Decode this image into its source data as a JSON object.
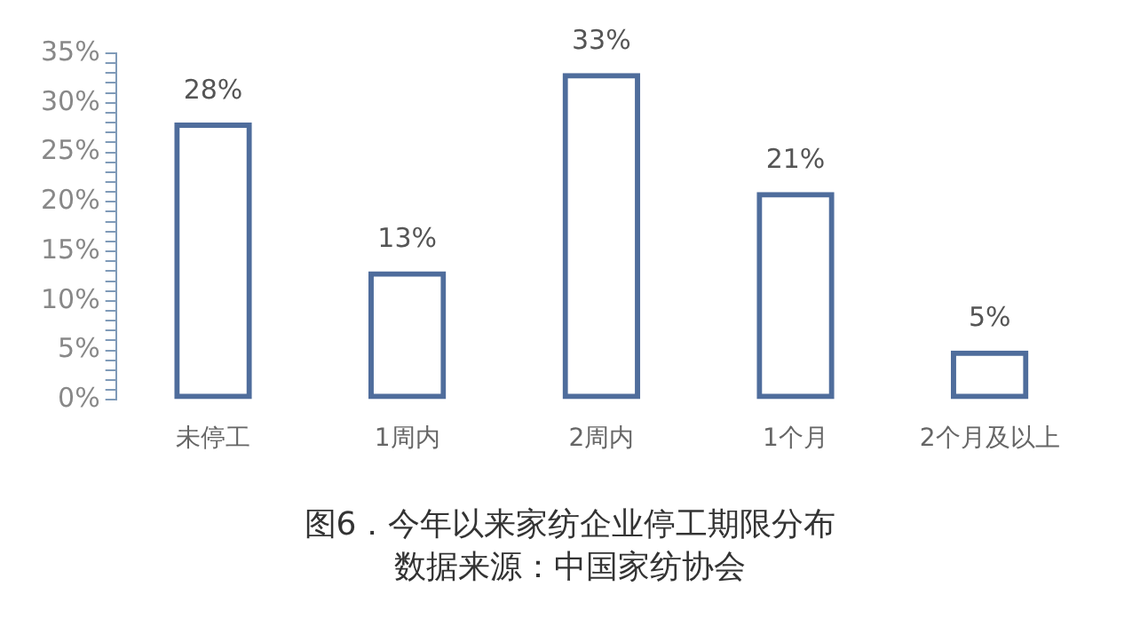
{
  "chart_data": {
    "type": "bar",
    "title": "图6．今年以来家纺企业停工期限分布",
    "annotations": [
      "数据来源：中国家纺协会"
    ],
    "categories": [
      "未停工",
      "1周内",
      "2周内",
      "1个月",
      "2个月及以上"
    ],
    "values": [
      28,
      13,
      33,
      21,
      5
    ],
    "value_labels": [
      "28%",
      "13%",
      "33%",
      "21%",
      "5%"
    ],
    "color": "#4f6d9c",
    "ylim": [
      0,
      35
    ],
    "yticks": [
      {
        "value": 0,
        "label": "0%"
      },
      {
        "value": 1,
        "label": null
      },
      {
        "value": 2,
        "label": null
      },
      {
        "value": 3,
        "label": null
      },
      {
        "value": 4,
        "label": null
      },
      {
        "value": 5,
        "label": "5%"
      },
      {
        "value": 6,
        "label": null
      },
      {
        "value": 7,
        "label": null
      },
      {
        "value": 8,
        "label": null
      },
      {
        "value": 9,
        "label": null
      },
      {
        "value": 10,
        "label": "10%"
      },
      {
        "value": 11,
        "label": null
      },
      {
        "value": 12,
        "label": null
      },
      {
        "value": 13,
        "label": null
      },
      {
        "value": 14,
        "label": null
      },
      {
        "value": 15,
        "label": "15%"
      },
      {
        "value": 16,
        "label": null
      },
      {
        "value": 17,
        "label": null
      },
      {
        "value": 18,
        "label": null
      },
      {
        "value": 19,
        "label": null
      },
      {
        "value": 20,
        "label": "20%"
      },
      {
        "value": 21,
        "label": null
      },
      {
        "value": 22,
        "label": null
      },
      {
        "value": 23,
        "label": null
      },
      {
        "value": 24,
        "label": null
      },
      {
        "value": 25,
        "label": "25%"
      },
      {
        "value": 26,
        "label": null
      },
      {
        "value": 27,
        "label": null
      },
      {
        "value": 28,
        "label": null
      },
      {
        "value": 29,
        "label": null
      },
      {
        "value": 30,
        "label": "30%"
      },
      {
        "value": 31,
        "label": null
      },
      {
        "value": 32,
        "label": null
      },
      {
        "value": 33,
        "label": null
      },
      {
        "value": 34,
        "label": null
      },
      {
        "value": 35,
        "label": "35%"
      }
    ],
    "grid": false,
    "legend": false
  }
}
